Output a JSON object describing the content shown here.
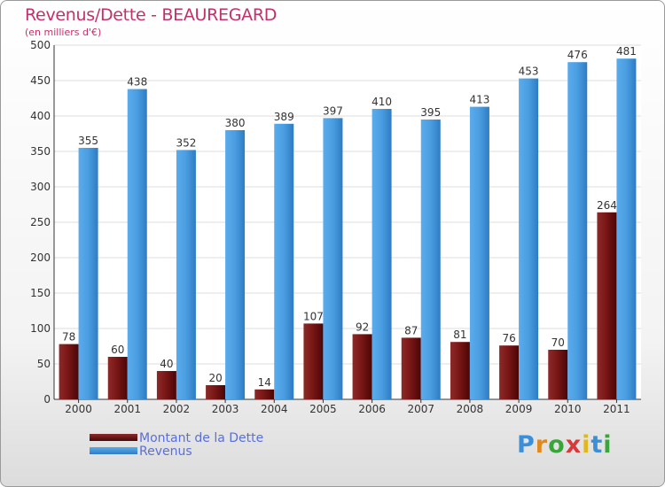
{
  "chart_data": {
    "type": "bar",
    "title": "Revenus/Dette - BEAUREGARD",
    "subtitle": "(en milliers d'€)",
    "categories": [
      "2000",
      "2001",
      "2002",
      "2003",
      "2004",
      "2005",
      "2006",
      "2007",
      "2008",
      "2009",
      "2010",
      "2011"
    ],
    "series": [
      {
        "name": "Montant de la Dette",
        "color": "#7a1818",
        "values": [
          78,
          60,
          40,
          20,
          14,
          107,
          92,
          87,
          81,
          76,
          70,
          264
        ]
      },
      {
        "name": "Revenus",
        "color": "#4a9de0",
        "values": [
          355,
          438,
          352,
          380,
          389,
          397,
          410,
          395,
          413,
          453,
          476,
          481
        ]
      }
    ],
    "ylim": [
      0,
      500
    ],
    "yticks": [
      0,
      50,
      100,
      150,
      200,
      250,
      300,
      350,
      400,
      450,
      500
    ],
    "grid": true,
    "legend_position": "bottom-left",
    "data_labels": true
  },
  "logo": {
    "text": "Proxiti",
    "letters": [
      {
        "char": "P",
        "color": "#3a8fd8"
      },
      {
        "char": "r",
        "color": "#e08a1e"
      },
      {
        "char": "o",
        "color": "#3aa53a"
      },
      {
        "char": "x",
        "color": "#d63a3a"
      },
      {
        "char": "i",
        "color": "#e0b81e"
      },
      {
        "char": "t",
        "color": "#3a8fd8"
      },
      {
        "char": "i",
        "color": "#3aa53a"
      }
    ]
  }
}
